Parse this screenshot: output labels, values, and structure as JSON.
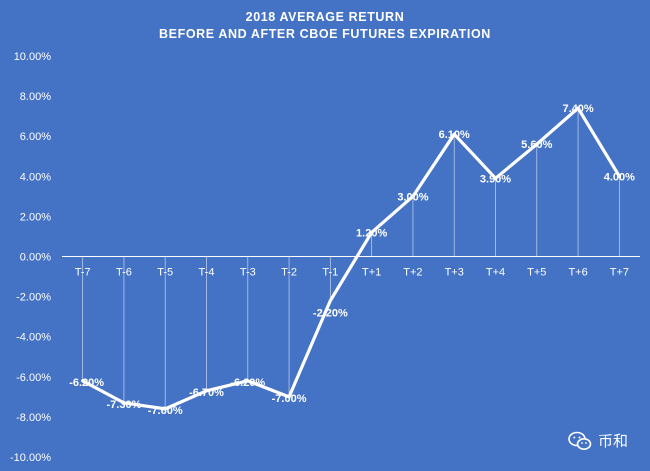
{
  "chart_data": {
    "type": "line",
    "title_lines": [
      "2018 AVERAGE RETURN",
      "BEFORE AND AFTER CBOE FUTURES EXPIRATION"
    ],
    "categories": [
      "T-7",
      "T-6",
      "T-5",
      "T-4",
      "T-3",
      "T-2",
      "T-1",
      "T+1",
      "T+2",
      "T+3",
      "T+4",
      "T+5",
      "T+6",
      "T+7"
    ],
    "values": [
      -6.2,
      -7.3,
      -7.6,
      -6.7,
      -6.2,
      -7.0,
      -2.2,
      1.2,
      3.0,
      6.1,
      3.9,
      5.6,
      7.4,
      4.0
    ],
    "data_labels": [
      "-6.20%",
      "-7.30%",
      "-7.60%",
      "-6.70%",
      "-6.20%",
      "-7.00%",
      "-2.20%",
      "1.20%",
      "3.00%",
      "6.10%",
      "3.90%",
      "5.60%",
      "7.40%",
      "4.00%"
    ],
    "ylim": [
      -10,
      10
    ],
    "yticks": [
      10,
      8,
      6,
      4,
      2,
      0,
      -2,
      -4,
      -6,
      -8,
      -10
    ],
    "ytick_labels": [
      "10.00%",
      "8.00%",
      "6.00%",
      "4.00%",
      "2.00%",
      "0.00%",
      "-2.00%",
      "-4.00%",
      "-6.00%",
      "-8.00%",
      "-10.00%"
    ],
    "drop_lines": true,
    "grid": false,
    "series_color": "#FFFFFF",
    "background_color": "#4472C4"
  },
  "watermark": {
    "icon": "wechat-icon",
    "text": "币和"
  }
}
